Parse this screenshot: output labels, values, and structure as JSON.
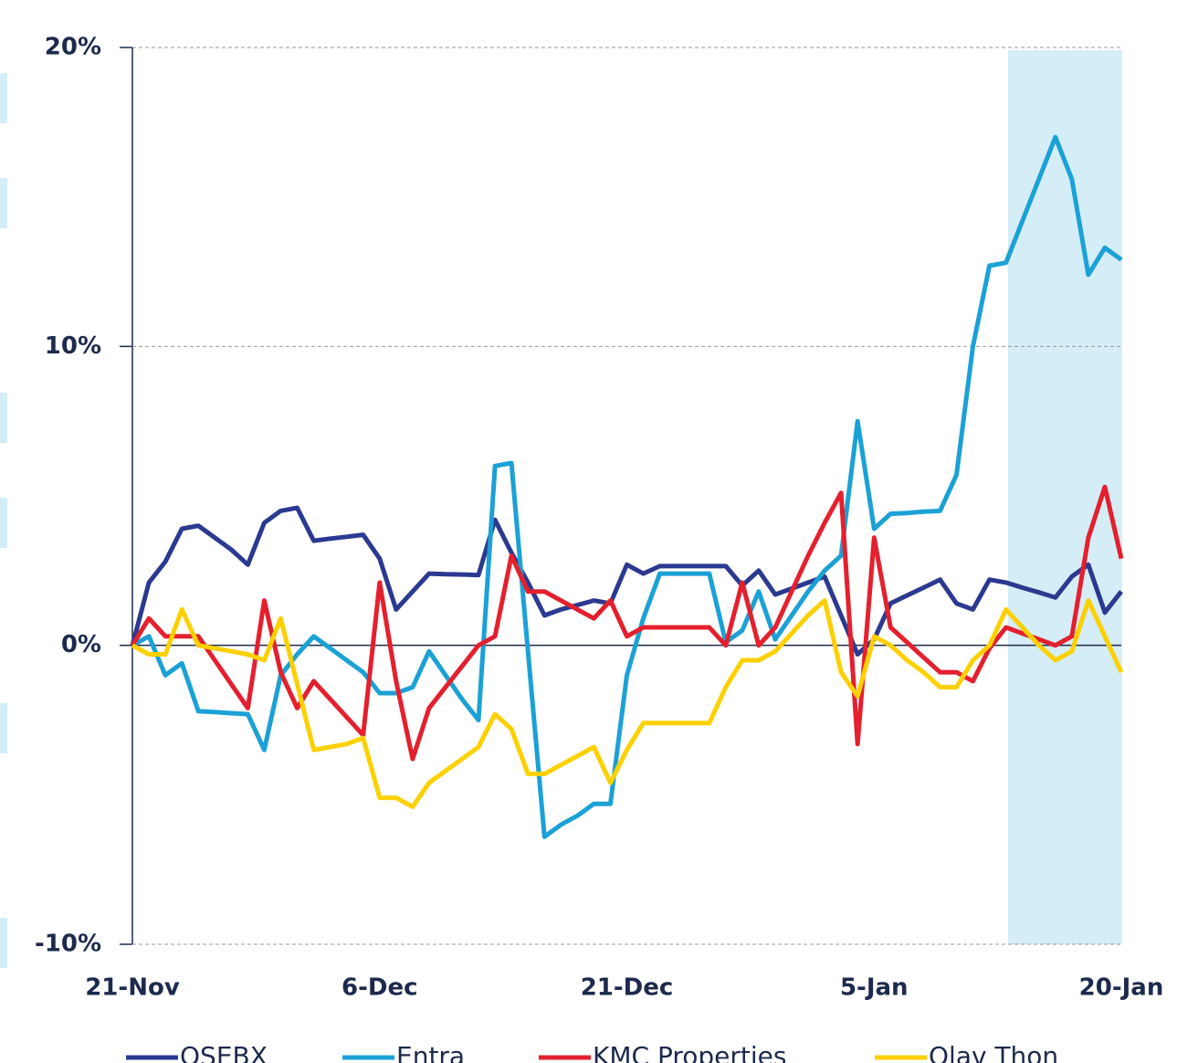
{
  "chart_data": {
    "type": "line",
    "categories": [
      "21-Nov",
      null,
      null,
      null,
      null,
      null,
      null,
      null,
      null,
      null,
      null,
      null,
      null,
      null,
      null,
      "6-Dec",
      null,
      null,
      null,
      null,
      null,
      null,
      null,
      null,
      null,
      null,
      null,
      null,
      null,
      null,
      "21-Dec",
      null,
      null,
      null,
      null,
      null,
      null,
      null,
      null,
      null,
      null,
      null,
      null,
      null,
      null,
      "5-Jan",
      null,
      null,
      null,
      null,
      null,
      null,
      null,
      null,
      null,
      null,
      null,
      null,
      null,
      null,
      "20-Jan"
    ],
    "series": [
      {
        "name": "OSEBX",
        "color": "#2b3990",
        "values": [
          0,
          2.1,
          2.8,
          3.9,
          4.0,
          3.6,
          3.2,
          2.7,
          4.1,
          4.5,
          4.6,
          3.5,
          3.57,
          3.63,
          3.7,
          2.9,
          1.2,
          1.8,
          2.4,
          2.38,
          2.37,
          2.35,
          4.2,
          3.1,
          2.1,
          1.0,
          1.2,
          1.35,
          1.5,
          1.4,
          2.7,
          2.4,
          2.65,
          2.65,
          2.65,
          2.65,
          2.65,
          2.0,
          2.5,
          1.7,
          1.9,
          2.1,
          2.3,
          1.0,
          -0.3,
          0.2,
          1.4,
          1.67,
          1.93,
          2.2,
          1.4,
          1.2,
          2.2,
          2.1,
          1.93,
          1.77,
          1.6,
          2.3,
          2.7,
          1.1,
          1.8
        ]
      },
      {
        "name": "Entra",
        "color": "#1ba1d6",
        "values": [
          0,
          0.3,
          -1.0,
          -0.6,
          -2.2,
          -2.23,
          -2.27,
          -2.3,
          -3.5,
          -1.0,
          -0.3,
          0.3,
          -0.1,
          -0.5,
          -0.9,
          -1.6,
          -1.6,
          -1.4,
          -0.2,
          -1.0,
          -1.8,
          -2.5,
          6.0,
          6.1,
          -0.2,
          -6.4,
          -6.0,
          -5.7,
          -5.3,
          -5.3,
          -1.0,
          0.9,
          2.4,
          2.4,
          2.4,
          2.4,
          0.1,
          0.5,
          1.8,
          0.2,
          1.0,
          1.8,
          2.5,
          3.0,
          7.5,
          3.9,
          4.4,
          4.43,
          4.47,
          4.5,
          5.7,
          10.0,
          12.7,
          12.8,
          14.2,
          15.6,
          17.0,
          15.6,
          12.4,
          13.3,
          12.9
        ]
      },
      {
        "name": "KMC Properties",
        "color": "#e4202e",
        "values": [
          0,
          0.9,
          0.3,
          0.3,
          0.3,
          -0.5,
          -1.3,
          -2.1,
          1.5,
          -0.9,
          -2.1,
          -1.2,
          -1.8,
          -2.4,
          -3.0,
          2.1,
          -1.2,
          -3.8,
          -2.1,
          -1.4,
          -0.7,
          0,
          0.3,
          3.0,
          1.8,
          1.8,
          1.5,
          1.2,
          0.9,
          1.5,
          0.3,
          0.6,
          0.6,
          0.6,
          0.6,
          0.6,
          0,
          2.1,
          0,
          0.6,
          1.8,
          3.0,
          4.1,
          5.1,
          -3.3,
          3.6,
          0.6,
          0.1,
          -0.4,
          -0.9,
          -0.9,
          -1.2,
          -0.1,
          0.6,
          0.4,
          0.2,
          0,
          0.3,
          3.6,
          5.3,
          2.9
        ]
      },
      {
        "name": "Olav Thon",
        "color": "#fdd000",
        "values": [
          0,
          -0.3,
          -0.3,
          1.2,
          0,
          -0.1,
          -0.2,
          -0.3,
          -0.5,
          0.9,
          -1.3,
          -3.5,
          -3.4,
          -3.3,
          -3.1,
          -5.1,
          -5.1,
          -5.4,
          -4.6,
          -4.2,
          -3.8,
          -3.4,
          -2.3,
          -2.8,
          -4.3,
          -4.3,
          -4.0,
          -3.7,
          -3.4,
          -4.6,
          -3.5,
          -2.6,
          -2.6,
          -2.6,
          -2.6,
          -2.6,
          -1.4,
          -0.5,
          -0.5,
          -0.2,
          0.4,
          1.0,
          1.5,
          -0.9,
          -1.7,
          0.3,
          0,
          -0.5,
          -0.9,
          -1.4,
          -1.4,
          -0.5,
          0,
          1.2,
          0.6,
          0,
          -0.5,
          -0.2,
          1.5,
          0.3,
          -0.9
        ]
      }
    ],
    "ylim": [
      -10,
      20
    ],
    "yticks": [
      {
        "value": -10,
        "label": "-10%"
      },
      {
        "value": 0,
        "label": "0%"
      },
      {
        "value": 10,
        "label": "10%"
      },
      {
        "value": 20,
        "label": "20%"
      }
    ],
    "grid": true,
    "legend": "bottom"
  }
}
